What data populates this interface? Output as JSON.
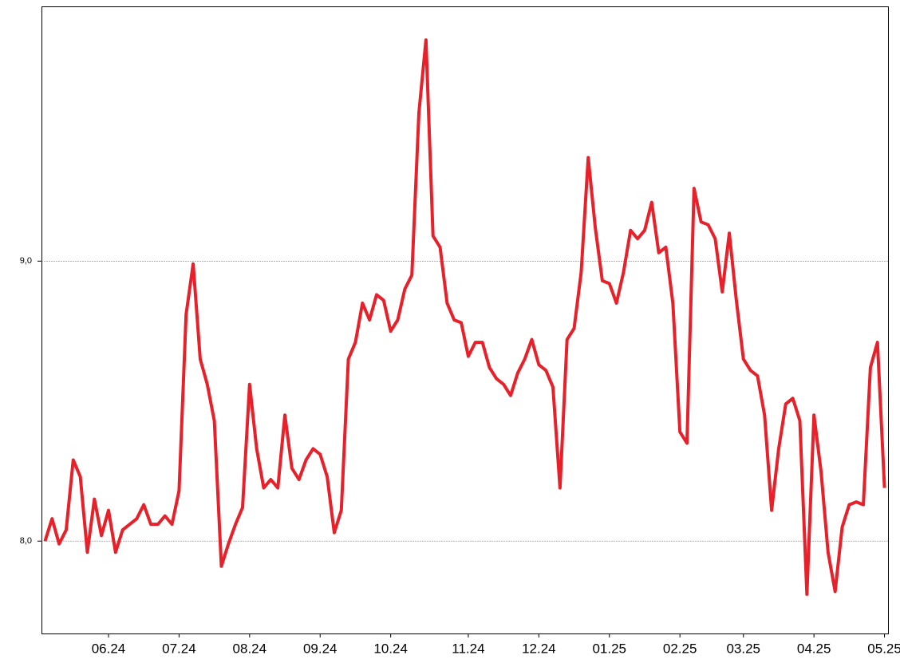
{
  "chart_data": {
    "type": "line",
    "categories": [
      null,
      null,
      null,
      null,
      null,
      null,
      null,
      null,
      null,
      "06.24",
      null,
      null,
      null,
      null,
      null,
      null,
      null,
      null,
      null,
      "07.24",
      null,
      null,
      null,
      null,
      null,
      null,
      null,
      null,
      null,
      "08.24",
      null,
      null,
      null,
      null,
      null,
      null,
      null,
      null,
      null,
      "09.24",
      null,
      null,
      null,
      null,
      null,
      null,
      null,
      null,
      null,
      "10.24",
      null,
      null,
      null,
      null,
      null,
      null,
      null,
      null,
      null,
      null,
      "11.24",
      null,
      null,
      null,
      null,
      null,
      null,
      null,
      null,
      null,
      "12.24",
      null,
      null,
      null,
      null,
      null,
      null,
      null,
      null,
      null,
      "01.25",
      null,
      null,
      null,
      null,
      null,
      null,
      null,
      null,
      null,
      "02.25",
      null,
      null,
      null,
      null,
      null,
      null,
      null,
      null,
      "03.25",
      null,
      null,
      null,
      null,
      null,
      null,
      null,
      null,
      null,
      "04.25",
      null,
      null,
      null,
      null,
      null,
      null,
      null,
      null,
      null,
      "05.25"
    ],
    "values": [
      8.0,
      8.08,
      7.99,
      8.04,
      8.29,
      8.23,
      7.96,
      8.15,
      8.02,
      8.11,
      7.96,
      8.04,
      8.06,
      8.08,
      8.13,
      8.06,
      8.06,
      8.09,
      8.06,
      8.18,
      8.81,
      8.99,
      8.65,
      8.56,
      8.43,
      7.91,
      7.99,
      8.06,
      8.12,
      8.56,
      8.33,
      8.19,
      8.22,
      8.19,
      8.45,
      8.26,
      8.22,
      8.29,
      8.33,
      8.31,
      8.23,
      8.03,
      8.11,
      8.65,
      8.71,
      8.85,
      8.79,
      8.88,
      8.86,
      8.75,
      8.79,
      8.9,
      8.95,
      9.53,
      9.79,
      9.09,
      9.05,
      8.85,
      8.79,
      8.78,
      8.66,
      8.71,
      8.71,
      8.62,
      8.58,
      8.56,
      8.52,
      8.6,
      8.65,
      8.72,
      8.63,
      8.61,
      8.55,
      8.19,
      8.72,
      8.76,
      8.96,
      9.37,
      9.12,
      8.93,
      8.92,
      8.85,
      8.96,
      9.11,
      9.08,
      9.11,
      9.21,
      9.03,
      9.05,
      8.85,
      8.39,
      8.35,
      9.26,
      9.14,
      9.13,
      9.08,
      8.89,
      9.1,
      8.86,
      8.65,
      8.61,
      8.59,
      8.45,
      8.11,
      8.33,
      8.49,
      8.51,
      8.43,
      7.81,
      8.45,
      8.25,
      7.96,
      7.82,
      8.05,
      8.13,
      8.14,
      8.13,
      8.62,
      8.71,
      8.19
    ],
    "color": "#e8202a",
    "ylim": [
      7.67,
      9.91
    ],
    "yticks": [
      {
        "value": 8,
        "label": "8,0"
      },
      {
        "value": 9,
        "label": "9,0"
      }
    ],
    "grid": true
  }
}
